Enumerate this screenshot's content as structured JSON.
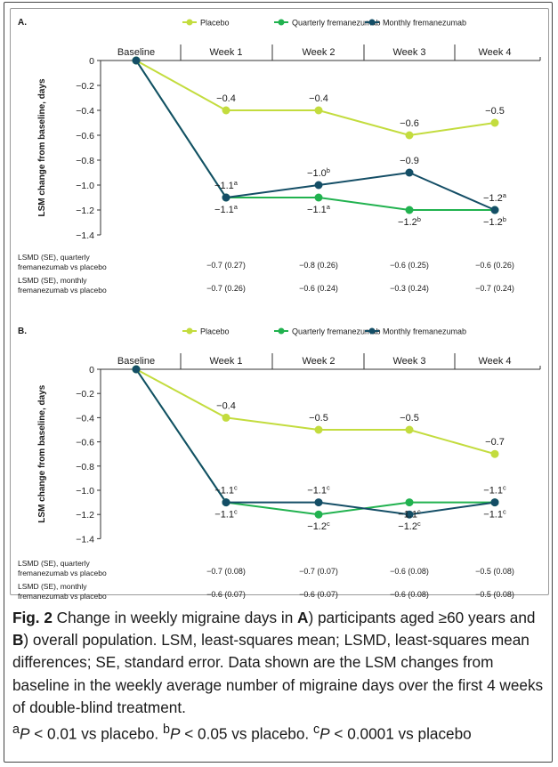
{
  "legend_labels": [
    "Placebo",
    "Quarterly fremanezumab",
    "Monthly fremanezumab"
  ],
  "colors": {
    "placebo": "#c3dc3e",
    "quarterly": "#21b24f",
    "monthly": "#144e66",
    "axis": "#333333",
    "text": "#1a1a1a"
  },
  "chart_data": [
    {
      "type": "line",
      "panel_label": "A.",
      "categories": [
        "Baseline",
        "Week 1",
        "Week 2",
        "Week 3",
        "Week 4"
      ],
      "ylabel": "LSM change from baseline, days",
      "ylim": [
        -1.4,
        0
      ],
      "yticks": [
        "0",
        "−0.2",
        "−0.4",
        "−0.6",
        "−0.8",
        "−1.0",
        "−1.2",
        "−1.4"
      ],
      "series": [
        {
          "name": "Placebo",
          "values": [
            0,
            -0.4,
            -0.4,
            -0.6,
            -0.5
          ],
          "labels": [
            "",
            "−0.4",
            "−0.4",
            "−0.6",
            "−0.5"
          ],
          "sup": [
            "",
            "",
            "",
            "",
            ""
          ]
        },
        {
          "name": "Quarterly fremanezumab",
          "values": [
            0,
            -1.1,
            -1.1,
            -1.2,
            -1.2
          ],
          "labels": [
            "",
            "−1.1",
            "−1.1",
            "−1.2",
            "−1.2"
          ],
          "sup": [
            "",
            "a",
            "a",
            "b",
            "b"
          ]
        },
        {
          "name": "Monthly fremanezumab",
          "values": [
            0,
            -1.1,
            -1.0,
            -0.9,
            -1.2
          ],
          "labels": [
            "",
            "−1.1",
            "−1.0",
            "−0.9",
            "−1.2"
          ],
          "sup": [
            "",
            "a",
            "b",
            "",
            "a"
          ]
        }
      ],
      "lsmd_rows": [
        {
          "label": [
            "LSMD (SE), quarterly",
            "fremanezumab vs placebo"
          ],
          "values": [
            "−0.7 (0.27)",
            "−0.8 (0.26)",
            "−0.6 (0.25)",
            "−0.6 (0.26)"
          ]
        },
        {
          "label": [
            "LSMD (SE), monthly",
            "fremanezumab vs placebo"
          ],
          "values": [
            "−0.7 (0.26)",
            "−0.6 (0.24)",
            "−0.3 (0.24)",
            "−0.7 (0.24)"
          ]
        }
      ]
    },
    {
      "type": "line",
      "panel_label": "B.",
      "categories": [
        "Baseline",
        "Week 1",
        "Week 2",
        "Week 3",
        "Week 4"
      ],
      "ylabel": "LSM change from baseline, days",
      "ylim": [
        -1.4,
        0
      ],
      "yticks": [
        "0",
        "−0.2",
        "−0.4",
        "−0.6",
        "−0.8",
        "−1.0",
        "−1.2",
        "−1.4"
      ],
      "series": [
        {
          "name": "Placebo",
          "values": [
            0,
            -0.4,
            -0.5,
            -0.5,
            -0.7
          ],
          "labels": [
            "",
            "−0.4",
            "−0.5",
            "−0.5",
            "−0.7"
          ],
          "sup": [
            "",
            "",
            "",
            "",
            ""
          ]
        },
        {
          "name": "Quarterly fremanezumab",
          "values": [
            0,
            -1.1,
            -1.2,
            -1.1,
            -1.1
          ],
          "labels": [
            "",
            "−1.1",
            "−1.2",
            "−1.1",
            "−1.1"
          ],
          "sup": [
            "",
            "c",
            "c",
            "c",
            "c"
          ]
        },
        {
          "name": "Monthly fremanezumab",
          "values": [
            0,
            -1.1,
            -1.1,
            -1.2,
            -1.1
          ],
          "labels": [
            "",
            "−1.1",
            "−1.1",
            "−1.2",
            "−1.1"
          ],
          "sup": [
            "",
            "c",
            "c",
            "c",
            "c"
          ]
        }
      ],
      "lsmd_rows": [
        {
          "label": [
            "LSMD (SE), quarterly",
            "fremanezumab vs placebo"
          ],
          "values": [
            "−0.7 (0.08)",
            "−0.7 (0.07)",
            "−0.6 (0.08)",
            "−0.5 (0.08)"
          ]
        },
        {
          "label": [
            "LSMD (SE), monthly",
            "fremanezumab vs placebo"
          ],
          "values": [
            "−0.6 (0.07)",
            "−0.6 (0.07)",
            "−0.6 (0.08)",
            "−0.5 (0.08)"
          ]
        }
      ]
    }
  ],
  "caption": {
    "fig_label": "Fig. 2",
    "t1": " Change in weekly migraine days in ",
    "a": "A",
    "t2": ") participants aged ≥60 years and ",
    "b": "B",
    "t3": ") overall population. LSM, least-squares mean; LSMD, least-squares mean differences; SE, standard error. Data shown are the LSM changes from baseline in the weekly average number of migraine days over the first 4 weeks of double-blind treatment.",
    "fn_a_sup": "a",
    "fn_a": "P",
    "fn_a_text": " < 0.01 vs placebo. ",
    "fn_b_sup": "b",
    "fn_b": "P",
    "fn_b_text": " < 0.05 vs placebo. ",
    "fn_c_sup": "c",
    "fn_c": "P",
    "fn_c_text": " < 0.0001 vs placebo"
  }
}
